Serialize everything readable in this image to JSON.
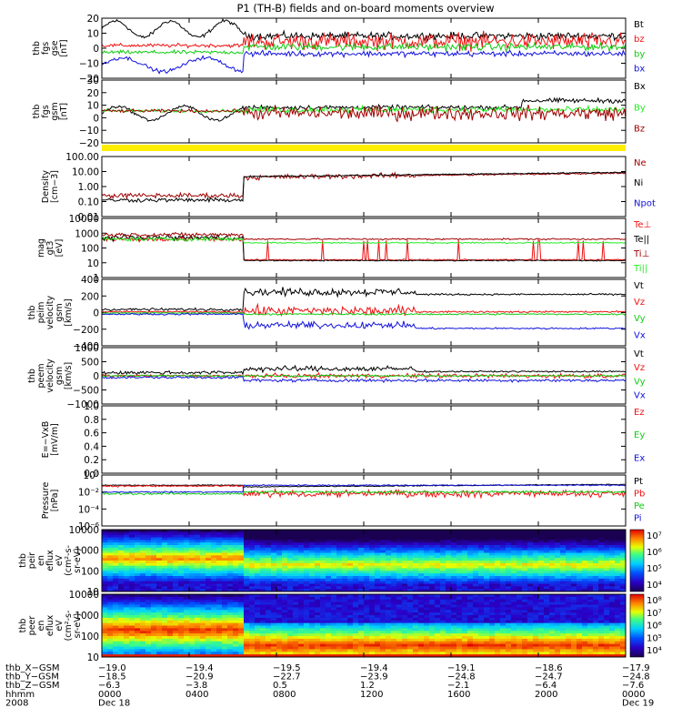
{
  "title": "P1 (TH-B) fields and on-board moments overview",
  "colors": {
    "black": "#000000",
    "red": "#ee1111",
    "darkred": "#a00000",
    "green": "#11cc11",
    "bright_green": "#22ee22",
    "blue": "#1111dd",
    "yellow": "#ffee00"
  },
  "chart_data": [
    {
      "type": "line",
      "panel": "fgs_gse",
      "ylabel_lines": [
        "thb",
        "fgs",
        "gse",
        "[nT]"
      ],
      "yticks": [
        "20",
        "10",
        "0",
        "−10",
        "−20"
      ],
      "ylim": [
        -22,
        22
      ],
      "series": [
        {
          "name": "Bt",
          "color": "black"
        },
        {
          "name": "bz",
          "color": "red"
        },
        {
          "name": "by",
          "color": "green"
        },
        {
          "name": "bx",
          "color": "blue"
        }
      ]
    },
    {
      "type": "line",
      "panel": "fgs_gsm",
      "ylabel_lines": [
        "thb",
        "fgs",
        "gsm",
        "[nT]"
      ],
      "yticks": [
        "30",
        "20",
        "10",
        "0",
        "−10",
        "−20"
      ],
      "ylim": [
        -25,
        30
      ],
      "series": [
        {
          "name": "Bx",
          "color": "black"
        },
        {
          "name": "By",
          "color": "bright_green"
        },
        {
          "name": "Bz",
          "color": "darkred"
        }
      ]
    },
    {
      "type": "line",
      "panel": "density",
      "ylabel_lines": [
        "Density",
        "[cm−3]"
      ],
      "yticks": [
        "100.00",
        "10.00",
        "1.00",
        "0.10",
        "0.01"
      ],
      "scale": "log",
      "ylim": [
        0.01,
        100
      ],
      "series": [
        {
          "name": "Ne",
          "color": "darkred"
        },
        {
          "name": "Ni",
          "color": "black"
        },
        {
          "name": "Npot",
          "color": "blue"
        }
      ]
    },
    {
      "type": "line",
      "panel": "temperature",
      "ylabel_lines": [
        "mag",
        "gt3",
        "[eV]"
      ],
      "yticks": [
        "10000",
        "1000",
        "100",
        "10",
        "1"
      ],
      "scale": "log",
      "ylim": [
        1,
        10000
      ],
      "series": [
        {
          "name": "Te⊥",
          "color": "red"
        },
        {
          "name": "Te||",
          "color": "black"
        },
        {
          "name": "Ti⊥",
          "color": "darkred"
        },
        {
          "name": "Ti||",
          "color": "bright_green"
        }
      ]
    },
    {
      "type": "line",
      "panel": "peim_velocity",
      "ylabel_lines": [
        "thb",
        "peim",
        "velocity",
        "gsm",
        "[km/s]"
      ],
      "yticks": [
        "400",
        "200",
        "0",
        "−200",
        "−400"
      ],
      "ylim": [
        -420,
        420
      ],
      "series": [
        {
          "name": "Vt",
          "color": "black"
        },
        {
          "name": "Vz",
          "color": "red"
        },
        {
          "name": "Vy",
          "color": "green"
        },
        {
          "name": "Vx",
          "color": "blue"
        }
      ]
    },
    {
      "type": "line",
      "panel": "peem_velocity",
      "ylabel_lines": [
        "thb",
        "peem",
        "velocity",
        "gsm",
        "[km/s]"
      ],
      "yticks": [
        "1000",
        "500",
        "0",
        "−500",
        "−1000"
      ],
      "ylim": [
        -1050,
        1050
      ],
      "series": [
        {
          "name": "Vt",
          "color": "black"
        },
        {
          "name": "Vz",
          "color": "red"
        },
        {
          "name": "Vy",
          "color": "green"
        },
        {
          "name": "Vx",
          "color": "blue"
        }
      ]
    },
    {
      "type": "line",
      "panel": "e_field",
      "ylabel_lines": [
        "E=−VxB",
        "[mV/m]"
      ],
      "yticks": [
        "1.0",
        "0.8",
        "0.6",
        "0.4",
        "0.2",
        "0.0"
      ],
      "ylim": [
        0,
        1
      ],
      "series": [
        {
          "name": "Ez",
          "color": "red"
        },
        {
          "name": "Ey",
          "color": "green"
        },
        {
          "name": "Ex",
          "color": "blue"
        }
      ]
    },
    {
      "type": "line",
      "panel": "pressure",
      "ylabel_lines": [
        "Pressure",
        "[nPa]"
      ],
      "yticks": [
        "10⁰",
        "10⁻²",
        "10⁻⁴",
        "10⁻⁶"
      ],
      "scale": "log",
      "ylim": [
        1e-06,
        1
      ],
      "series": [
        {
          "name": "Pt",
          "color": "black"
        },
        {
          "name": "Pb",
          "color": "red"
        },
        {
          "name": "Pe",
          "color": "green"
        },
        {
          "name": "Pi",
          "color": "blue"
        }
      ]
    },
    {
      "type": "heatmap",
      "panel": "peir_spectrogram",
      "ylabel_lines": [
        "thb",
        "peir",
        "en",
        "eflux",
        "eV",
        "(cm²-s-",
        "sr-eV)"
      ],
      "yticks": [
        "10000",
        "1000",
        "100",
        "10"
      ],
      "scale": "log",
      "ylim": [
        10,
        25000
      ],
      "colorbar_ticks": [
        "10⁷",
        "10⁶",
        "10⁵",
        "10⁴"
      ]
    },
    {
      "type": "heatmap",
      "panel": "peer_spectrogram",
      "ylabel_lines": [
        "thb",
        "peer",
        "en",
        "eflux",
        "eV",
        "(cm²-s-",
        "sr-eV)"
      ],
      "yticks": [
        "10000",
        "1000",
        "100",
        "10"
      ],
      "scale": "log",
      "ylim": [
        10,
        25000
      ],
      "colorbar_ticks": [
        "10⁸",
        "10⁷",
        "10⁶",
        "10⁵",
        "10⁴"
      ]
    }
  ],
  "xaxis": {
    "row_labels": [
      "thb_X−GSM",
      "thb_Y−GSM",
      "thb_Z−GSM",
      "hhmm",
      "2008"
    ],
    "columns": [
      {
        "x": [
          "−19.0",
          "−18.5",
          "−6.3",
          "0000",
          "Dec 18"
        ]
      },
      {
        "x": [
          "−19.4",
          "−20.9",
          "−3.8",
          "0400",
          ""
        ]
      },
      {
        "x": [
          "−19.5",
          "−22.7",
          "0.5",
          "0800",
          ""
        ]
      },
      {
        "x": [
          "−19.4",
          "−23.9",
          "1.2",
          "1200",
          ""
        ]
      },
      {
        "x": [
          "−19.1",
          "−24.8",
          "−2.1",
          "1600",
          ""
        ]
      },
      {
        "x": [
          "−18.6",
          "−24.7",
          "−6.4",
          "2000",
          ""
        ]
      },
      {
        "x": [
          "−17.9",
          "−24.8",
          "−7.6",
          "0000",
          "Dec 19"
        ]
      }
    ]
  }
}
